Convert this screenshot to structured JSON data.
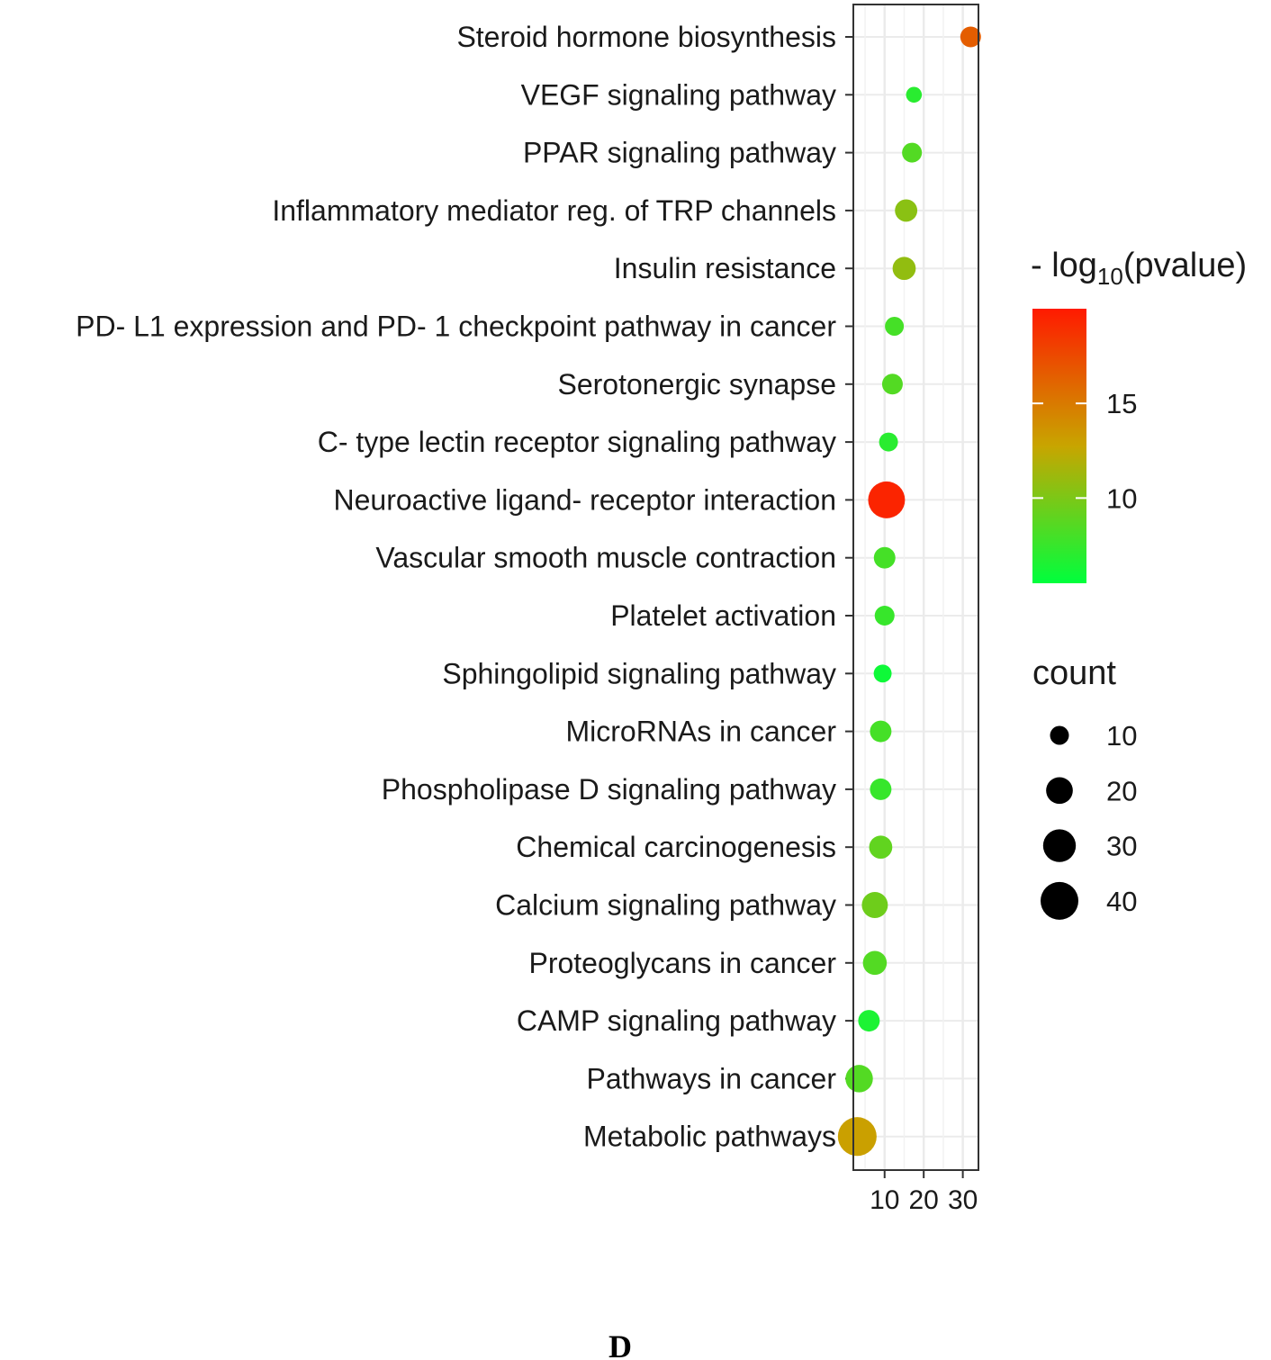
{
  "chart_data": {
    "type": "scatter",
    "title": "",
    "xlabel": "",
    "ylabel": "",
    "xlim": [
      2,
      34
    ],
    "x_ticks": [
      10,
      20,
      30
    ],
    "x_tick_labels": [
      "10",
      "20",
      "30"
    ],
    "grid": true,
    "points": [
      {
        "category": "Steroid hormone biosynthesis",
        "x": 32,
        "count": 12,
        "neg_log10_p": 16.5
      },
      {
        "category": "VEGF signaling pathway",
        "x": 17.5,
        "count": 7,
        "neg_log10_p": 7.0
      },
      {
        "category": "PPAR signaling pathway",
        "x": 17,
        "count": 11,
        "neg_log10_p": 8.5
      },
      {
        "category": "Inflammatory mediator reg. of TRP channels",
        "x": 15.5,
        "count": 14,
        "neg_log10_p": 10.5
      },
      {
        "category": "Insulin resistance",
        "x": 15,
        "count": 15,
        "neg_log10_p": 10.8
      },
      {
        "category": "PD- L1 expression and PD- 1 checkpoint pathway in cancer",
        "x": 12.5,
        "count": 10,
        "neg_log10_p": 8.0
      },
      {
        "category": "Serotonergic synapse",
        "x": 12,
        "count": 12,
        "neg_log10_p": 8.5
      },
      {
        "category": "C- type lectin receptor signaling pathway",
        "x": 11,
        "count": 10,
        "neg_log10_p": 7.0
      },
      {
        "category": "Neuroactive ligand- receptor interaction",
        "x": 10.5,
        "count": 38,
        "neg_log10_p": 19.5
      },
      {
        "category": "Vascular smooth muscle contraction",
        "x": 10,
        "count": 13,
        "neg_log10_p": 8.0
      },
      {
        "category": "Platelet activation",
        "x": 10,
        "count": 11,
        "neg_log10_p": 7.5
      },
      {
        "category": "Sphingolipid signaling pathway",
        "x": 9.5,
        "count": 9,
        "neg_log10_p": 6.0
      },
      {
        "category": "MicroRNAs in cancer",
        "x": 9,
        "count": 13,
        "neg_log10_p": 8.0
      },
      {
        "category": "Phospholipase D signaling pathway",
        "x": 9,
        "count": 13,
        "neg_log10_p": 7.5
      },
      {
        "category": "Chemical carcinogenesis",
        "x": 9,
        "count": 15,
        "neg_log10_p": 9.0
      },
      {
        "category": "Calcium signaling pathway",
        "x": 7.5,
        "count": 19,
        "neg_log10_p": 9.5
      },
      {
        "category": "Proteoglycans in cancer",
        "x": 7.5,
        "count": 16,
        "neg_log10_p": 8.5
      },
      {
        "category": "CAMP signaling pathway",
        "x": 6,
        "count": 13,
        "neg_log10_p": 6.5
      },
      {
        "category": "Pathways in cancer",
        "x": 3.5,
        "count": 21,
        "neg_log10_p": 8.5
      },
      {
        "category": "Metabolic pathways",
        "x": 3,
        "count": 42,
        "neg_log10_p": 13.0
      }
    ],
    "color_legend": {
      "title_prefix": "- log",
      "title_subscript": "10",
      "title_suffix": "(pvalue)",
      "range": [
        5.5,
        20
      ],
      "low_color": "#00ff3c",
      "mid_color": "#c8a500",
      "high_color": "#ff1a00",
      "breaks": [
        10,
        15
      ],
      "break_labels": [
        "10",
        "15"
      ]
    },
    "size_legend": {
      "title": "count",
      "breaks": [
        10,
        20,
        30,
        40
      ],
      "break_labels": [
        "10",
        "20",
        "30",
        "40"
      ]
    }
  },
  "panel_label": "D"
}
